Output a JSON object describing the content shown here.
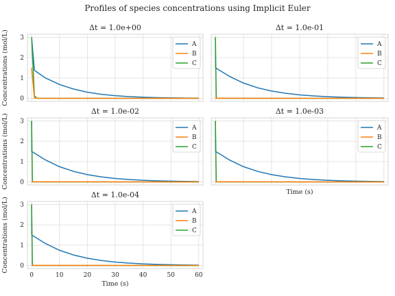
{
  "suptitle": "Profiles of species concentrations using Implicit Euler",
  "chart_data": {
    "type": "line",
    "panels": [
      {
        "title": "Δt = 1.0e+00",
        "dt": 1.0,
        "ylabel": "Concentrations (mol/L)",
        "xlabel": "",
        "show_xticklabels": false,
        "show_yticklabels": true
      },
      {
        "title": "Δt = 1.0e-01",
        "dt": 0.1,
        "ylabel": "",
        "xlabel": "",
        "show_xticklabels": false,
        "show_yticklabels": false
      },
      {
        "title": "Δt = 1.0e-02",
        "dt": 0.01,
        "ylabel": "Concentrations (mol/L)",
        "xlabel": "",
        "show_xticklabels": false,
        "show_yticklabels": true
      },
      {
        "title": "Δt = 1.0e-03",
        "dt": 0.001,
        "ylabel": "",
        "xlabel": "Time (s)",
        "show_xticklabels": false,
        "show_yticklabels": false
      },
      {
        "title": "Δt = 1.0e-04",
        "dt": 0.0001,
        "ylabel": "Concentrations (mol/L)",
        "xlabel": "Time (s)",
        "show_xticklabels": true,
        "show_yticklabels": true
      }
    ],
    "series": [
      {
        "name": "A",
        "color": "#1f77b4"
      },
      {
        "name": "B",
        "color": "#ff7f0e"
      },
      {
        "name": "C",
        "color": "#2ca02c"
      }
    ],
    "curves": {
      "coarse": {
        "A": [
          [
            0,
            3.0
          ],
          [
            1,
            1.38
          ],
          [
            2,
            1.28
          ],
          [
            5,
            1.0
          ],
          [
            10,
            0.68
          ],
          [
            15,
            0.46
          ],
          [
            20,
            0.3
          ],
          [
            25,
            0.2
          ],
          [
            30,
            0.13
          ],
          [
            35,
            0.085
          ],
          [
            40,
            0.056
          ],
          [
            45,
            0.037
          ],
          [
            50,
            0.024
          ],
          [
            55,
            0.016
          ],
          [
            60,
            0.01
          ]
        ],
        "B": [
          [
            0,
            1.5
          ],
          [
            1,
            0.02
          ],
          [
            2,
            0.0
          ],
          [
            60,
            0.0
          ]
        ],
        "C": [
          [
            0,
            3.0
          ],
          [
            1,
            0.12
          ],
          [
            2,
            0.0
          ],
          [
            60,
            0.0
          ]
        ]
      },
      "fine": {
        "A": [
          [
            0,
            3.0
          ],
          [
            0.05,
            1.5
          ],
          [
            5,
            1.08
          ],
          [
            10,
            0.75
          ],
          [
            15,
            0.52
          ],
          [
            20,
            0.36
          ],
          [
            25,
            0.25
          ],
          [
            30,
            0.17
          ],
          [
            35,
            0.12
          ],
          [
            40,
            0.08
          ],
          [
            45,
            0.055
          ],
          [
            50,
            0.038
          ],
          [
            55,
            0.026
          ],
          [
            60,
            0.018
          ]
        ],
        "B": [
          [
            0,
            0.0
          ],
          [
            0.3,
            0.01
          ],
          [
            60,
            0.0
          ]
        ],
        "C": [
          [
            0,
            3.0
          ],
          [
            0.3,
            0.0
          ],
          [
            60,
            0.0
          ]
        ]
      }
    },
    "x_ticks": [
      0,
      10,
      20,
      30,
      40,
      50,
      60
    ],
    "y_ticks": [
      0,
      1,
      2,
      3
    ],
    "xlim": [
      -1.5,
      61.5
    ],
    "ylim": [
      -0.15,
      3.15
    ],
    "grid": true,
    "legend_position": "upper right"
  }
}
